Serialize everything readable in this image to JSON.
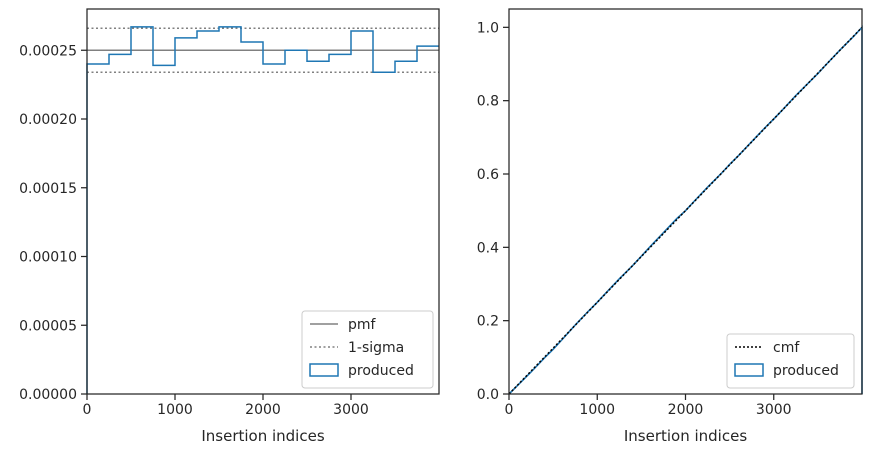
{
  "chart_data": [
    {
      "type": "step",
      "xlabel": "Insertion indices",
      "ylabel": "",
      "xlim": [
        0,
        4000
      ],
      "ylim": [
        0,
        0.00028
      ],
      "xticks": [
        0,
        1000,
        2000,
        3000
      ],
      "xtick_labels": [
        "0",
        "1000",
        "2000",
        "3000"
      ],
      "yticks": [
        0,
        5e-05,
        0.0001,
        0.00015,
        0.0002,
        0.00025
      ],
      "ytick_labels": [
        "0.00000",
        "0.00005",
        "0.00010",
        "0.00015",
        "0.00020",
        "0.00025"
      ],
      "grid": false,
      "legend_position": "lower-right",
      "legend": [
        "pmf",
        "1-sigma",
        "produced"
      ],
      "pmf": 0.00025,
      "sigma_band": [
        0.000234,
        0.000266
      ],
      "bin_edges": [
        0,
        250,
        500,
        750,
        1000,
        1250,
        1500,
        1750,
        2000,
        2250,
        2500,
        2750,
        3000,
        3250,
        3500,
        3750,
        4000
      ],
      "produced": [
        0.00024,
        0.000247,
        0.000267,
        0.000239,
        0.000259,
        0.000264,
        0.000267,
        0.000256,
        0.00024,
        0.00025,
        0.000242,
        0.000247,
        0.000264,
        0.000234,
        0.000242,
        0.000253
      ],
      "colors": {
        "pmf": "#808080",
        "sigma": "#808080",
        "produced": "#1f77b4"
      }
    },
    {
      "type": "line",
      "xlabel": "Insertion indices",
      "ylabel": "",
      "xlim": [
        0,
        4000
      ],
      "ylim": [
        0,
        1.05
      ],
      "xticks": [
        0,
        1000,
        2000,
        3000
      ],
      "xtick_labels": [
        "0",
        "1000",
        "2000",
        "3000"
      ],
      "yticks": [
        0,
        0.2,
        0.4,
        0.6,
        0.8,
        1.0
      ],
      "ytick_labels": [
        "0.0",
        "0.2",
        "0.4",
        "0.6",
        "0.8",
        "1.0"
      ],
      "grid": false,
      "legend_position": "lower-right",
      "legend": [
        "cmf",
        "produced"
      ],
      "cmf": {
        "x": [
          0,
          4000
        ],
        "y": [
          0,
          1.0
        ]
      },
      "produced": {
        "x": [
          0,
          100,
          250,
          400,
          500,
          600,
          750,
          900,
          1000,
          1100,
          1250,
          1400,
          1500,
          1600,
          1750,
          1900,
          2000,
          2100,
          2250,
          2400,
          2500,
          2600,
          2750,
          2900,
          3000,
          3100,
          3250,
          3400,
          3500,
          3600,
          3750,
          3900,
          4000
        ],
        "y": [
          0,
          0.024,
          0.06,
          0.098,
          0.122,
          0.148,
          0.188,
          0.226,
          0.25,
          0.276,
          0.314,
          0.35,
          0.376,
          0.402,
          0.44,
          0.478,
          0.5,
          0.526,
          0.564,
          0.6,
          0.626,
          0.65,
          0.688,
          0.726,
          0.75,
          0.775,
          0.814,
          0.85,
          0.874,
          0.9,
          0.938,
          0.974,
          1.0
        ]
      },
      "colors": {
        "cmf": "#000000",
        "produced": "#1f77b4"
      }
    }
  ]
}
